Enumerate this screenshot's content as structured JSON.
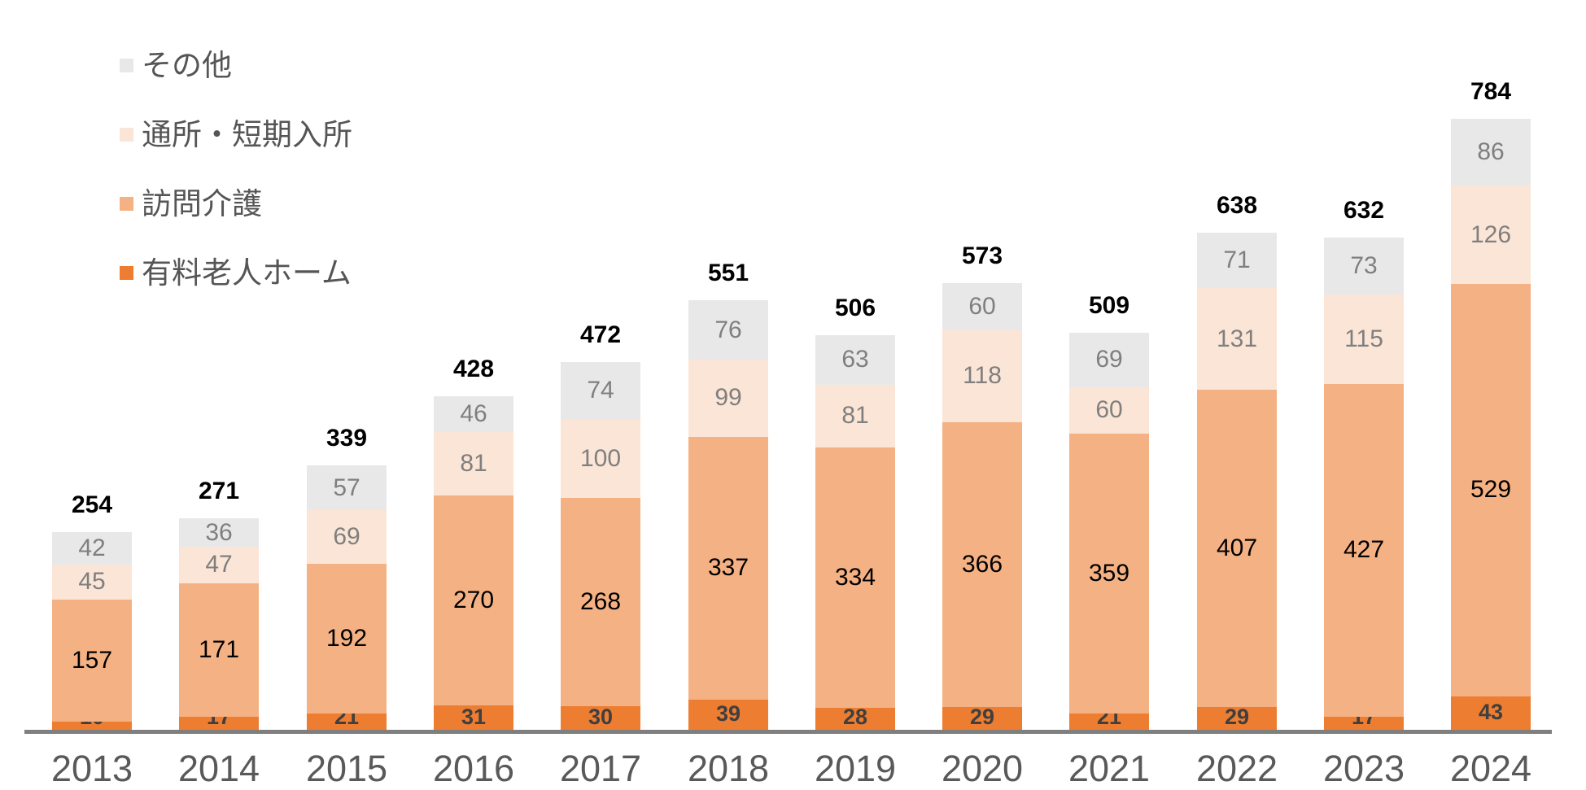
{
  "legend": {
    "items": [
      {
        "label": "その他",
        "color": "#E9E8E8"
      },
      {
        "label": "通所・短期入所",
        "color": "#FBE5D6"
      },
      {
        "label": "訪問介護",
        "color": "#F4B183"
      },
      {
        "label": "有料老人ホーム",
        "color": "#ED7D31"
      }
    ]
  },
  "chart_data": {
    "type": "bar",
    "stacked": true,
    "title": "",
    "xlabel": "",
    "ylabel": "",
    "grid": false,
    "legend_position": "top-left",
    "ylim": [
      0,
      840
    ],
    "categories": [
      "2013",
      "2014",
      "2015",
      "2016",
      "2017",
      "2018",
      "2019",
      "2020",
      "2021",
      "2022",
      "2023",
      "2024"
    ],
    "series": [
      {
        "name": "有料老人ホーム",
        "color": "#ED7D31",
        "label_color": "#3f3f3f",
        "values": [
          10,
          17,
          21,
          31,
          30,
          39,
          28,
          29,
          21,
          29,
          17,
          43
        ]
      },
      {
        "name": "訪問介護",
        "color": "#F4B183",
        "label_color": "#000000",
        "values": [
          157,
          171,
          192,
          270,
          268,
          337,
          334,
          366,
          359,
          407,
          427,
          529
        ]
      },
      {
        "name": "通所・短期入所",
        "color": "#FBE5D6",
        "label_color": "#7f7f7f",
        "values": [
          45,
          47,
          69,
          81,
          100,
          99,
          81,
          118,
          60,
          131,
          115,
          126
        ]
      },
      {
        "name": "その他",
        "color": "#E9E8E8",
        "label_color": "#7f7f7f",
        "values": [
          42,
          36,
          57,
          46,
          74,
          76,
          63,
          60,
          69,
          71,
          73,
          86
        ]
      }
    ],
    "totals": [
      254,
      271,
      339,
      428,
      472,
      551,
      506,
      573,
      509,
      638,
      632,
      784
    ]
  },
  "axis": {
    "line_color": "#7f7f7f",
    "tick_label_color": "#595959"
  }
}
